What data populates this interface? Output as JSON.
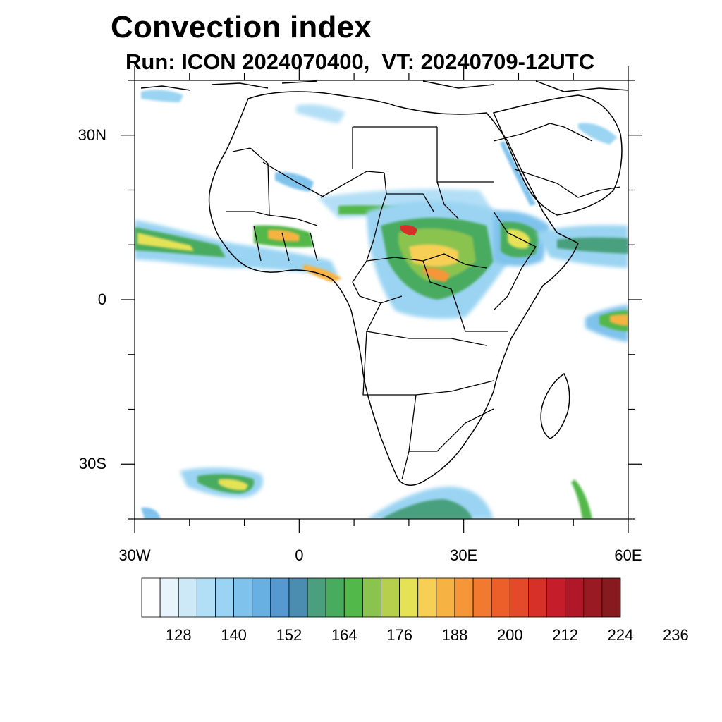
{
  "title": "Convection index",
  "subtitle": "Run: ICON 2024070400,  VT: 20240709-12UTC",
  "map": {
    "projection": "cylindrical equidistant",
    "lon_range": [
      -30,
      60
    ],
    "lat_range": [
      -40,
      40
    ],
    "lat_ticks": [
      {
        "lat": 30,
        "label": "30N"
      },
      {
        "lat": 0,
        "label": "0"
      },
      {
        "lat": -30,
        "label": "30S"
      }
    ],
    "lon_ticks": [
      {
        "lon": -30,
        "label": "30W"
      },
      {
        "lon": 0,
        "label": "0"
      },
      {
        "lon": 30,
        "label": "30E"
      },
      {
        "lon": 60,
        "label": "60E"
      }
    ],
    "regions": [
      "ITCZ band west Africa / Atlantic",
      "central Africa convection",
      "Ethiopian highlands",
      "Arabian Sea band",
      "south Atlantic cyclone",
      "south Africa coast",
      "Indian Ocean east edge"
    ]
  },
  "colorbar": {
    "colors": [
      "#ffffff",
      "#e8f4fb",
      "#cde9f8",
      "#b3dff6",
      "#9ad4f2",
      "#7fc3ec",
      "#68b0e2",
      "#5599d0",
      "#4a8db0",
      "#4aa07e",
      "#49ab5e",
      "#53b84a",
      "#8bc34f",
      "#b6d04e",
      "#e6e256",
      "#f7cf54",
      "#f6b343",
      "#f59639",
      "#f27a30",
      "#ec5f2a",
      "#e24a29",
      "#d63029",
      "#c51e2a",
      "#b0182a",
      "#991a22",
      "#871a1e"
    ],
    "labels": [
      "128",
      "140",
      "152",
      "164",
      "176",
      "188",
      "200",
      "212",
      "224",
      "236"
    ]
  }
}
